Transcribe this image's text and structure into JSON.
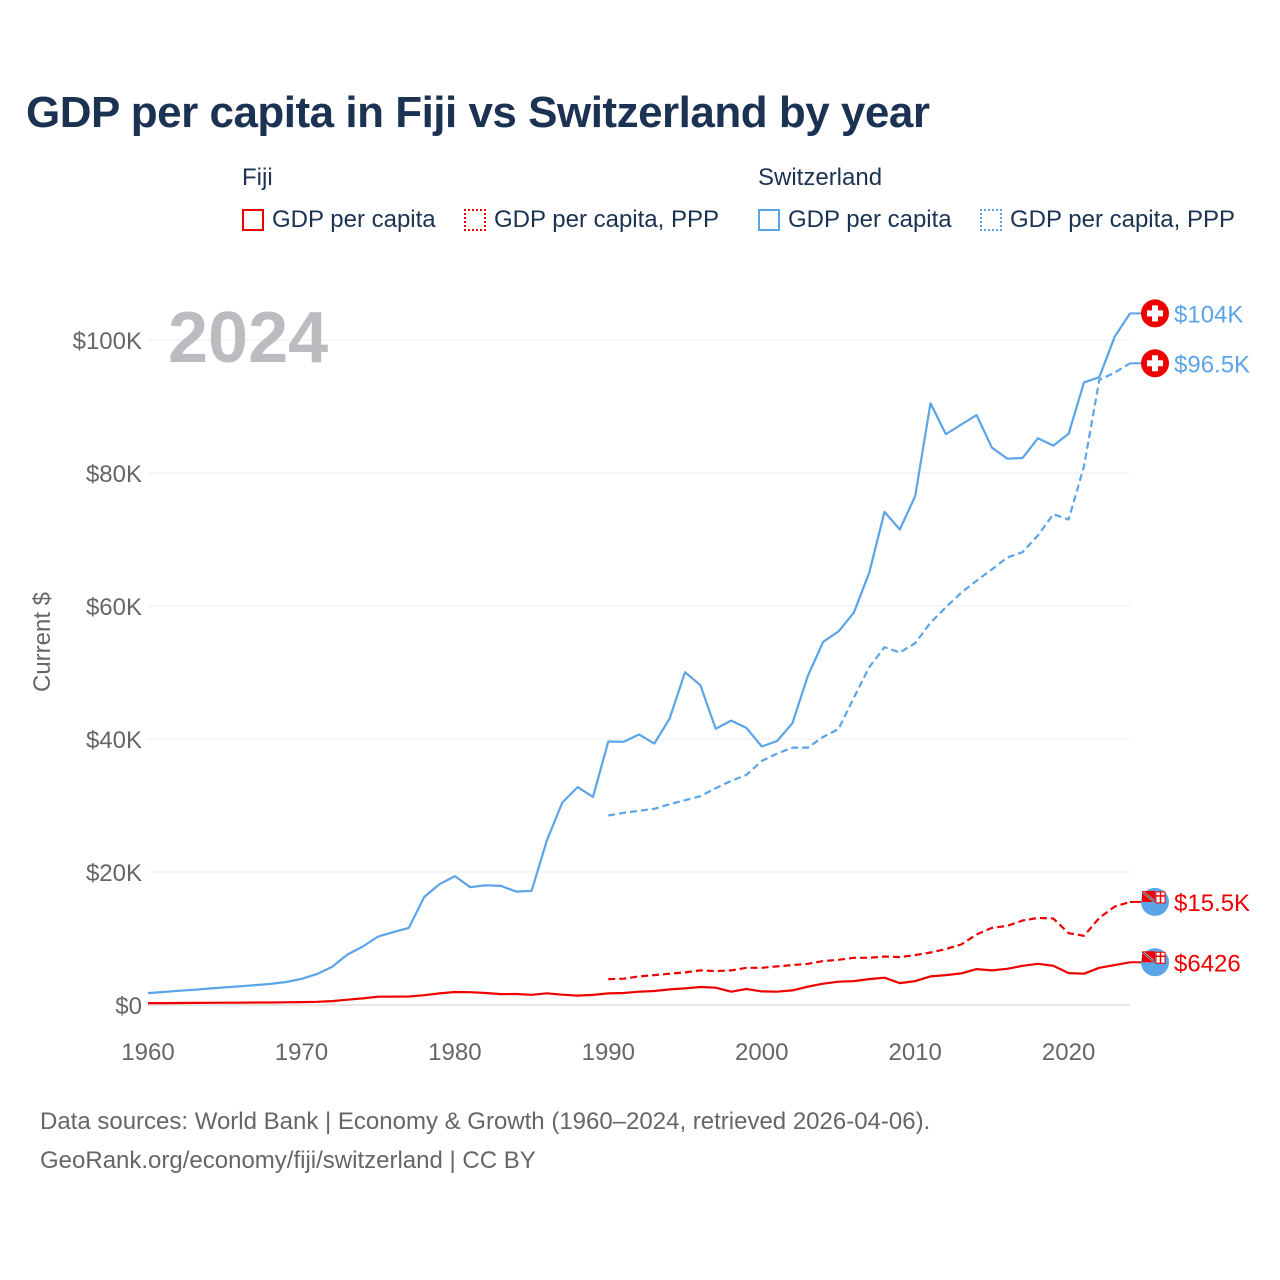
{
  "title": "GDP per capita in Fiji vs Switzerland by year",
  "legend": {
    "groups": [
      {
        "name": "Fiji",
        "items": [
          "GDP per capita",
          "GDP per capita, PPP"
        ]
      },
      {
        "name": "Switzerland",
        "items": [
          "GDP per capita",
          "GDP per capita, PPP"
        ]
      }
    ]
  },
  "year_watermark": "2024",
  "footer": {
    "line1": "Data sources: World Bank | Economy & Growth (1960–2024, retrieved 2026-04-06).",
    "line2": "GeoRank.org/economy/fiji/switzerland | CC BY"
  },
  "colors": {
    "fiji": "#ee0000",
    "switzerland": "#5ba4e8",
    "title": "#1b3252"
  },
  "chart_data": {
    "type": "line",
    "title": "GDP per capita in Fiji vs Switzerland by year",
    "xlabel": "",
    "ylabel": "Current $",
    "xlim": [
      1960,
      2024
    ],
    "ylim": [
      0,
      100000
    ],
    "x_ticks": [
      1960,
      1970,
      1980,
      1990,
      2000,
      2010,
      2020
    ],
    "x_tick_labels": [
      "1960",
      "1970",
      "1980",
      "1990",
      "2000",
      "2010",
      "2020"
    ],
    "y_ticks": [
      0,
      20000,
      40000,
      60000,
      80000,
      100000
    ],
    "y_tick_labels": [
      "$0",
      "$20K",
      "$40K",
      "$60K",
      "$80K",
      "$100K"
    ],
    "grid": true,
    "legend_position": "top",
    "series": [
      {
        "name": "Switzerland GDP per capita",
        "country": "Switzerland",
        "dash": false,
        "start": 1960,
        "end_label": "$104K",
        "end_icon": "switzerland-flag-icon",
        "values": [
          1787,
          1961,
          2130,
          2285,
          2484,
          2644,
          2808,
          2986,
          3174,
          3454,
          3920,
          4642,
          5730,
          7600,
          8796,
          10300,
          10960,
          11600,
          16240,
          18170,
          19380,
          17720,
          18000,
          17910,
          17050,
          17180,
          24760,
          30430,
          32760,
          31290,
          39630,
          39580,
          40670,
          39310,
          43100,
          50040,
          48090,
          41530,
          42770,
          41670,
          38870,
          39700,
          42380,
          49480,
          54600,
          56180,
          59000,
          65000,
          74170,
          71500,
          76520,
          90480,
          85840,
          87300,
          88700,
          83800,
          82150,
          82250,
          85220,
          84120,
          85900,
          93630,
          94400,
          100500,
          104000
        ]
      },
      {
        "name": "Switzerland GDP per capita, PPP",
        "country": "Switzerland",
        "dash": true,
        "start": 1990,
        "end_label": "$96.5K",
        "end_icon": "switzerland-flag-icon",
        "values": [
          28500,
          28900,
          29200,
          29500,
          30200,
          30800,
          31400,
          32600,
          33700,
          34600,
          36700,
          37800,
          38700,
          38700,
          40300,
          41500,
          46200,
          50800,
          53800,
          53000,
          54400,
          57500,
          59800,
          62000,
          63800,
          65500,
          67300,
          68100,
          70600,
          73800,
          73000,
          81000,
          94000,
          95100,
          96500
        ]
      },
      {
        "name": "Fiji GDP per capita",
        "country": "Fiji",
        "dash": false,
        "start": 1960,
        "end_label": "$6426",
        "end_icon": "fiji-flag-icon",
        "values": [
          280,
          290,
          300,
          310,
          330,
          340,
          350,
          370,
          380,
          400,
          430,
          480,
          590,
          800,
          1000,
          1250,
          1260,
          1280,
          1470,
          1750,
          1950,
          1920,
          1800,
          1640,
          1650,
          1540,
          1760,
          1550,
          1420,
          1520,
          1750,
          1800,
          2000,
          2100,
          2350,
          2500,
          2700,
          2600,
          2000,
          2400,
          2050,
          2000,
          2200,
          2750,
          3200,
          3500,
          3600,
          3900,
          4100,
          3300,
          3600,
          4300,
          4500,
          4750,
          5400,
          5200,
          5450,
          5900,
          6200,
          5900,
          4800,
          4700,
          5600,
          6000,
          6426
        ]
      },
      {
        "name": "Fiji GDP per capita, PPP",
        "country": "Fiji",
        "dash": true,
        "start": 1990,
        "end_label": "$15.5K",
        "end_icon": "fiji-flag-icon",
        "values": [
          3900,
          3950,
          4300,
          4500,
          4700,
          4900,
          5200,
          5100,
          5200,
          5600,
          5600,
          5800,
          6000,
          6200,
          6600,
          6800,
          7100,
          7100,
          7300,
          7200,
          7500,
          7900,
          8400,
          9100,
          10600,
          11600,
          11900,
          12700,
          13100,
          13000,
          10800,
          10400,
          13100,
          14800,
          15500
        ]
      }
    ]
  }
}
